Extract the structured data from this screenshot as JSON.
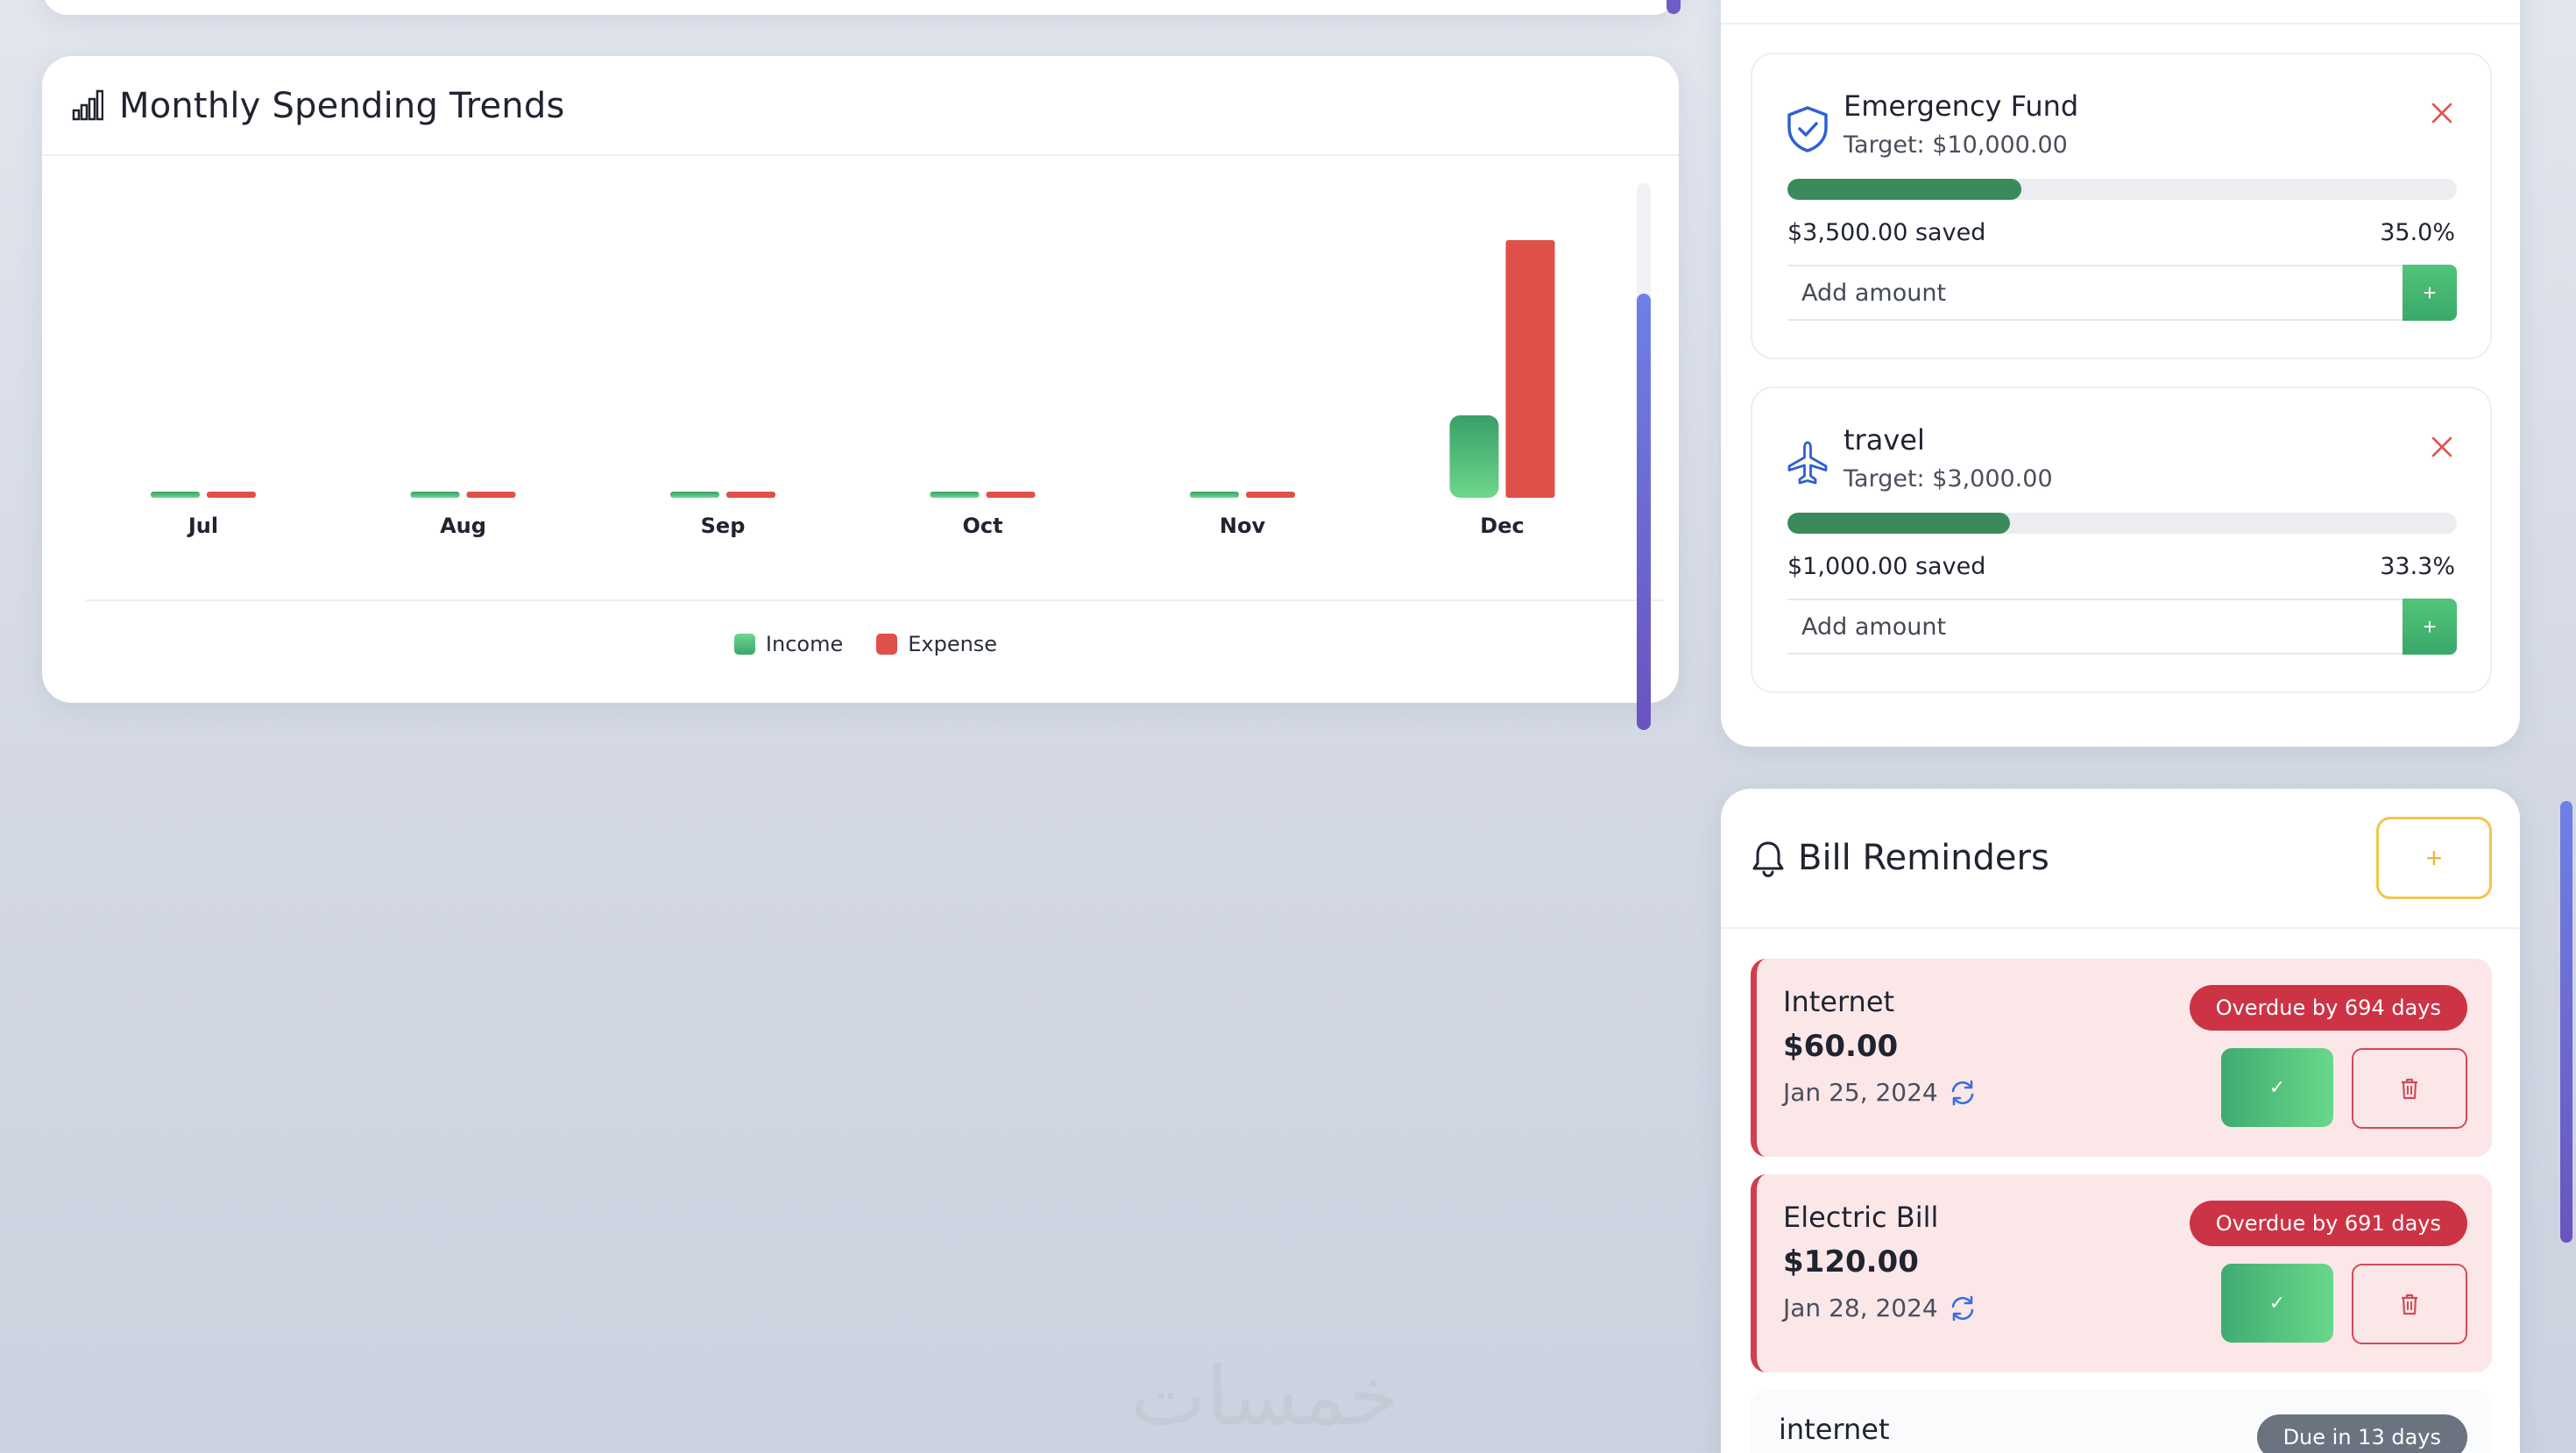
{
  "trends": {
    "title": "Monthly Spending Trends",
    "legend": [
      {
        "label": "Income",
        "color": "#4cbb78"
      },
      {
        "label": "Expense",
        "color": "#e0504a"
      }
    ]
  },
  "chart_data": {
    "type": "bar",
    "categories": [
      "Jul",
      "Aug",
      "Sep",
      "Oct",
      "Nov",
      "Dec"
    ],
    "series": [
      {
        "name": "Income",
        "values": [
          0,
          0,
          0,
          0,
          0,
          32
        ]
      },
      {
        "name": "Expense",
        "values": [
          0,
          0,
          0,
          0,
          0,
          100
        ]
      }
    ],
    "ylim": [
      0,
      100
    ],
    "grid": false,
    "legend_position": "bottom"
  },
  "goals": [
    {
      "name": "Emergency Fund",
      "target": "Target: $10,000.00",
      "saved": "$3,500.00 saved",
      "percent_label": "35.0%",
      "progress": 0.35,
      "icon": "shield-icon",
      "input_placeholder": "Add amount",
      "add_label": "+"
    },
    {
      "name": "travel",
      "target": "Target: $3,000.00",
      "saved": "$1,000.00 saved",
      "percent_label": "33.3%",
      "progress": 0.333,
      "icon": "airplane-icon",
      "input_placeholder": "Add amount",
      "add_label": "+"
    }
  ],
  "bills": {
    "title": "Bill Reminders",
    "add_label": "+",
    "items": [
      {
        "name": "Internet",
        "amount": "$60.00",
        "date": "Jan 25, 2024",
        "badge": "Overdue by 694 days",
        "status": "overdue",
        "pay_label": "✓"
      },
      {
        "name": "Electric Bill",
        "amount": "$120.00",
        "date": "Jan 28, 2024",
        "badge": "Overdue by 691 days",
        "status": "overdue",
        "pay_label": "✓"
      },
      {
        "name": "internet",
        "badge": "Due in 13 days",
        "status": "upcoming"
      }
    ]
  },
  "colors": {
    "income": "#4cbb78",
    "expense": "#e0504a",
    "overdue": "#cc3345",
    "progress": "#3a8a5c",
    "accent": "#6e5cc7"
  },
  "watermark": "خمسات"
}
